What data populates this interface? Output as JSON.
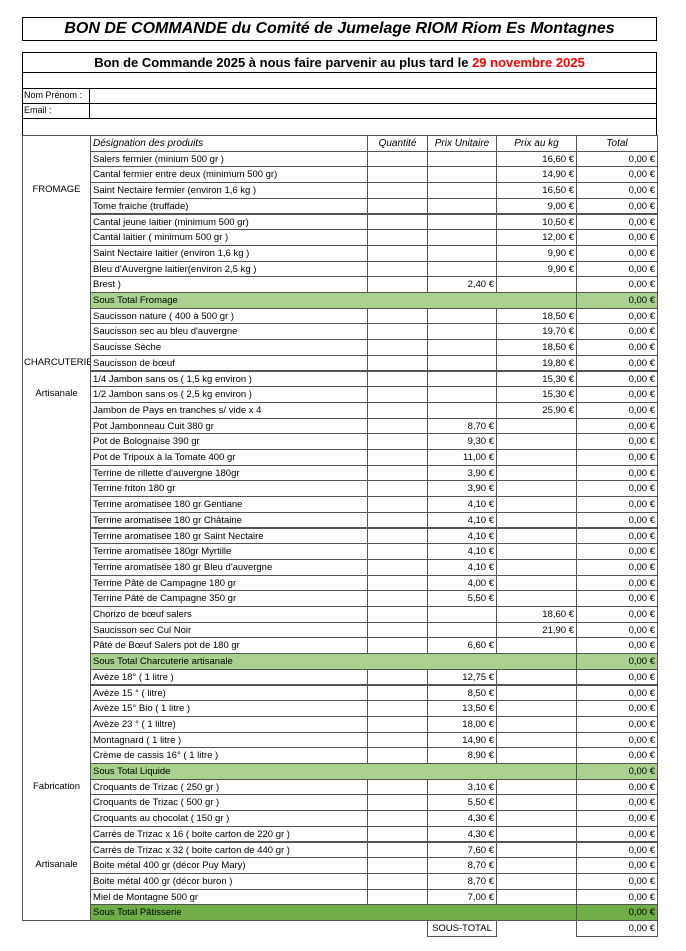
{
  "header": {
    "title": "BON DE COMMANDE du Comité de Jumelage RIOM Riom Es Montagnes",
    "subtitle": "Bon de Commande 2025 à nous faire parvenir au plus tard le",
    "deadline": "29 novembre 2025",
    "deadline_color": "#ff0000"
  },
  "form": {
    "name_label": "Nom Prénom :",
    "email_label": "Email :"
  },
  "table": {
    "headers": [
      "Désignation des produits",
      "Quantité",
      "Prix Unitaire",
      "Prix au kg",
      "Total"
    ],
    "rows": [
      {
        "product": "Salers fermier (minium 500 gr )",
        "prix_kg": "16,60 €",
        "total": "0,00 €"
      },
      {
        "product": "Cantal fermier entre deux (minimum 500 gr)",
        "prix_kg": "14,90 €",
        "total": "0,00 €"
      },
      {
        "group": "FROMAGE",
        "product": "Saint Nectaire fermier (environ 1,6 kg )",
        "prix_kg": "16,50 €",
        "total": "0,00 €"
      },
      {
        "product": "Tome fraiche (truffade)",
        "prix_kg": "9,00 €",
        "total": "0,00 €"
      },
      {
        "product": "Cantal jeune laitier (minimum 500 gr)",
        "prix_kg": "10,50 €",
        "total": "0,00 €"
      },
      {
        "product": "Cantal laitier ( minimum  500 gr )",
        "prix_kg": "12,00 €",
        "total": "0,00 €"
      },
      {
        "product": "Saint Nectaire laitier (environ 1,6 kg )",
        "prix_kg": "9,90 €",
        "total": "0,00 €"
      },
      {
        "product": "Bleu d'Auvergne laitier(environ 2,5 kg )",
        "prix_kg": "9,90 €",
        "total": "0,00 €"
      },
      {
        "product": "Brest )",
        "prix_unitaire": "2,40 €",
        "total": "0,00 €"
      },
      {
        "product": "Sous Total Fromage",
        "total": "0,00 €",
        "fill": "#a9d08e"
      },
      {
        "product": "Saucisson nature ( 400 à 500 gr )",
        "prix_kg": "18,50 €",
        "total": "0,00 €"
      },
      {
        "product": "Saucisson sec au bleu d'auvergne",
        "prix_kg": "19,70 €",
        "total": "0,00 €"
      },
      {
        "product": "Saucisse Sèche",
        "prix_kg": "18,50 €",
        "total": "0,00 €"
      },
      {
        "group": "CHARCUTERIE",
        "product": "Saucisson de bœuf",
        "prix_kg": "19,80 €",
        "total": "0,00 €"
      },
      {
        "product": "1/4 Jambon sans os ( 1,5 kg environ )",
        "prix_kg": "15,30 €",
        "total": "0,00 €"
      },
      {
        "group": "Artisanale",
        "product": "1/2 Jambon sans os ( 2,5 kg environ )",
        "prix_kg": "15,30 €",
        "total": "0,00 €"
      },
      {
        "product": "Jambon de Pays en tranches s/ vide x 4",
        "prix_kg": "25,90 €",
        "total": "0,00 €"
      },
      {
        "product": "Pot Jambonneau Cuit 380 gr",
        "prix_unitaire": "8,70 €",
        "total": "0,00 €"
      },
      {
        "product": "Pot de Bolognaise  390 gr",
        "prix_unitaire": "9,30 €",
        "total": "0,00 €"
      },
      {
        "product": "Pot de Tripoux à la Tomate 400 gr",
        "prix_unitaire": "11,00 €",
        "total": "0,00 €"
      },
      {
        "product": "Terrine  de rillette d'auvergne 180gr",
        "prix_unitaire": "3,90 €",
        "total": "0,00 €"
      },
      {
        "product": "Terrine friton 180 gr",
        "prix_unitaire": "3,90 €",
        "total": "0,00 €"
      },
      {
        "product": "Terrine aromatisée 180 gr Gentiane",
        "prix_unitaire": "4,10 €",
        "total": "0,00 €"
      },
      {
        "product": "Terrine aromatisée 180 gr Châtaine",
        "prix_unitaire": "4,10 €",
        "total": "0,00 €"
      },
      {
        "product": "Terrine aromatisée 180 gr Saint Nectaire",
        "prix_unitaire": "4,10 €",
        "total": "0,00 €"
      },
      {
        "product": "Terrine aromatisée 180gr Myrtille",
        "prix_unitaire": "4,10 €",
        "total": "0,00 €"
      },
      {
        "product": "Terrine aromatisée 180 gr Bleu d'auvergne",
        "prix_unitaire": "4,10 €",
        "total": "0,00 €"
      },
      {
        "product": "Terrine Pâté de Campagne 180 gr",
        "prix_unitaire": "4,00 €",
        "total": "0,00 €"
      },
      {
        "product": "Terrine Pâté de Campagne 350 gr",
        "prix_unitaire": "5,50 €",
        "total": "0,00 €"
      },
      {
        "product": "Chorizo de bœuf salers",
        "prix_kg": "18,60 €",
        "total": "0,00 €"
      },
      {
        "product": "Saucisson sec  Cul Noir",
        "prix_kg": "21,90 €",
        "total": "0,00 €"
      },
      {
        "product": "Pâté de Bœuf Salers pot de 180 gr",
        "prix_unitaire": "6,60 €",
        "total": "0,00 €"
      },
      {
        "product": "Sous Total Charcuterie artisanale",
        "total": "0,00 €",
        "fill": "#a9d08e"
      },
      {
        "product": "Avèze 18° ( 1 litre )",
        "prix_unitaire": "12,75 €",
        "total": "0,00 €"
      },
      {
        "product": "Avèze 15 ° ( litre)",
        "prix_unitaire": "8,50 €",
        "total": "0,00 €"
      },
      {
        "product": "Avèze 15° Bio ( 1 litre )",
        "prix_unitaire": "13,50 €",
        "total": "0,00 €"
      },
      {
        "product": "Avèze  23 ° ( 1 liltre)",
        "prix_unitaire": "18,00 €",
        "total": "0,00 €"
      },
      {
        "product": "Montagnard ( 1 litre )",
        "prix_unitaire": "14,90 €",
        "total": "0,00 €"
      },
      {
        "product": "Crème de cassis 16° ( 1 litre )",
        "prix_unitaire": "8,90 €",
        "total": "0,00 €"
      },
      {
        "product": "Sous Total Liquide",
        "total": "0,00 €",
        "fill": "#a9d08e"
      },
      {
        "group": "Fabrication",
        "product": "Croquants de Trizac ( 250 gr )",
        "prix_unitaire": "3,10 €",
        "total": "0,00 €"
      },
      {
        "product": "Croquants de Trizac ( 500 gr )",
        "prix_unitaire": "5,50 €",
        "total": "0,00 €"
      },
      {
        "product": "Croquants au chocolat ( 150 gr )",
        "prix_unitaire": "4,30 €",
        "total": "0,00 €"
      },
      {
        "product": "Carrés de Trizac x 16 ( boite carton de 220 gr )",
        "prix_unitaire": "4,30 €",
        "total": "0,00 €"
      },
      {
        "product": "Carrés de Trizac x 32 ( boite carton de 440 gr )",
        "prix_unitaire": "7,60 €",
        "total": "0,00 €"
      },
      {
        "group": "Artisanale",
        "product": "Boite métal  400 gr (décor Puy Mary)",
        "prix_unitaire": "8,70 €",
        "total": "0,00 €"
      },
      {
        "product": "Boite métal  400 gr (décor buron )",
        "prix_unitaire": "8,70 €",
        "total": "0,00 €"
      },
      {
        "product": "Miel de Montagne 500 gr",
        "prix_unitaire": "7,00 €",
        "total": "0,00 €"
      },
      {
        "product": "Sous Total Pâtisserie",
        "total": "0,00 €",
        "fill": "#70ad47"
      }
    ]
  },
  "footer": {
    "label": "SOUS-TOTAL",
    "total": "0,00 €"
  }
}
